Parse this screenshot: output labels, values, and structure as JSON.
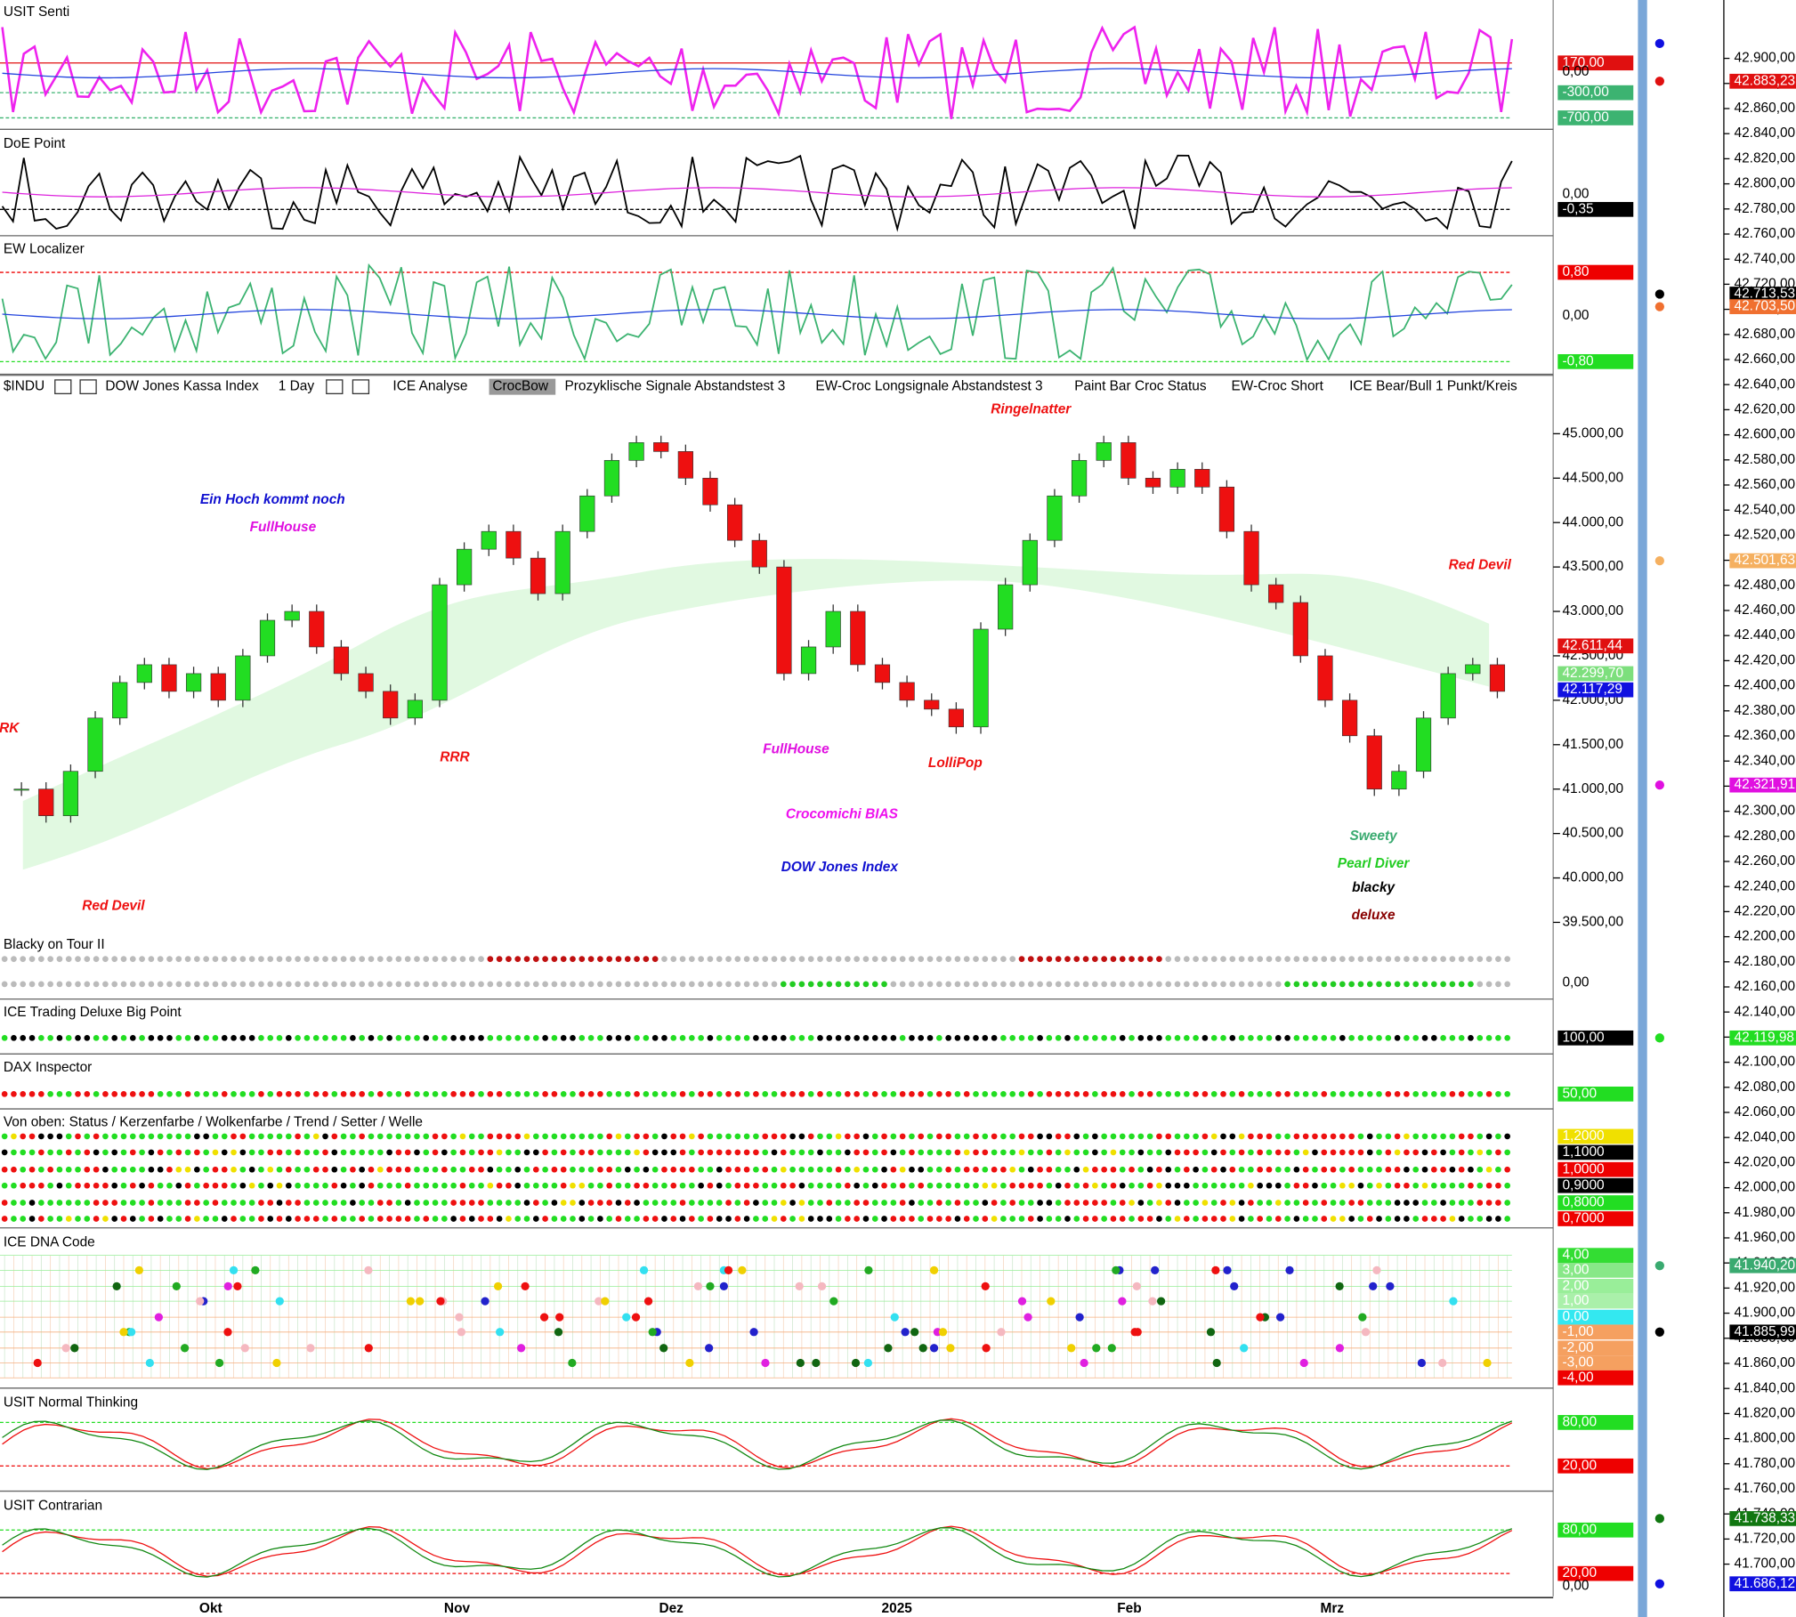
{
  "panels": [
    {
      "title": "USIT Senti",
      "levels": [
        {
          "label": "170,00",
          "color": "#e01010"
        },
        {
          "label": "0,00",
          "color": "none"
        },
        {
          "label": "-300,00",
          "color": "#3cb371"
        },
        {
          "label": "-700,00",
          "color": "#3cb371"
        }
      ]
    },
    {
      "title": "DoE Point",
      "levels": [
        {
          "label": "0,00",
          "color": "none"
        },
        {
          "label": "-0,35",
          "color": "#000000"
        }
      ]
    },
    {
      "title": "EW Localizer",
      "levels": [
        {
          "label": "0,80",
          "color": "#ee0000"
        },
        {
          "label": "0,00",
          "color": "none"
        },
        {
          "label": "-0,80",
          "color": "#22dd22"
        }
      ]
    },
    {
      "title": "Blacky on Tour II",
      "levels": [
        {
          "label": "0,00",
          "color": "none"
        }
      ]
    },
    {
      "title": "ICE Trading Deluxe Big Point",
      "levels": [
        {
          "label": "100,00",
          "color": "#000000"
        }
      ]
    },
    {
      "title": "DAX Inspector",
      "levels": [
        {
          "label": "50,00",
          "color": "#22dd22"
        }
      ]
    },
    {
      "title": "Von oben: Status / Kerzenfarbe / Wolkenfarbe / Trend / Setter / Welle",
      "levels": [
        {
          "label": "1,2000",
          "color": "#f0e000"
        },
        {
          "label": "1,1000",
          "color": "#000000"
        },
        {
          "label": "1,0000",
          "color": "#ee0000"
        },
        {
          "label": "0,9000",
          "color": "#000000"
        },
        {
          "label": "0,8000",
          "color": "#22dd22"
        },
        {
          "label": "0,7000",
          "color": "#ee0000"
        }
      ]
    },
    {
      "title": "ICE DNA Code",
      "levels": [
        {
          "label": "4,00",
          "color": "#33dd33"
        },
        {
          "label": "3,00",
          "color": "#88e888"
        },
        {
          "label": "2,00",
          "color": "#99ee99"
        },
        {
          "label": "1,00",
          "color": "#aaf0aa"
        },
        {
          "label": "0,00",
          "color": "#33e8f0"
        },
        {
          "label": "-1,00",
          "color": "#f5a060"
        },
        {
          "label": "-2,00",
          "color": "#f5a060"
        },
        {
          "label": "-3,00",
          "color": "#f5a060"
        },
        {
          "label": "-4,00",
          "color": "#ee0000"
        }
      ]
    },
    {
      "title": "USIT Normal Thinking",
      "levels": [
        {
          "label": "80,00",
          "color": "#22dd22"
        },
        {
          "label": "20,00",
          "color": "#ee0000"
        }
      ]
    },
    {
      "title": "USIT Contrarian",
      "levels": [
        {
          "label": "80,00",
          "color": "#22dd22"
        },
        {
          "label": "20,00",
          "color": "#ee0000"
        },
        {
          "label": "0,00",
          "color": "none"
        }
      ]
    }
  ],
  "main": {
    "toolbar": [
      "$INDU",
      "DOW Jones Kassa Index",
      "1 Day",
      "ICE Analyse",
      "CrocBow",
      "Prozyklische Signale Abstandstest 3",
      "EW-Croc Longsignale Abstandstest 3",
      "Paint Bar Croc Status",
      "EW-Croc Short",
      "ICE Bear/Bull 1 Punkt/Kreis"
    ],
    "yticks": [
      {
        "value": 45000,
        "label": "45.000,00"
      },
      {
        "value": 44500,
        "label": "44.500,00"
      },
      {
        "value": 44000,
        "label": "44.000,00"
      },
      {
        "value": 43500,
        "label": "43.500,00"
      },
      {
        "value": 43000,
        "label": "43.000,00"
      },
      {
        "value": 42500,
        "label": "42.500,00"
      },
      {
        "value": 42000,
        "label": "42.000,00"
      },
      {
        "value": 41500,
        "label": "41.500,00"
      },
      {
        "value": 41000,
        "label": "41.000,00"
      },
      {
        "value": 40500,
        "label": "40.500,00"
      },
      {
        "value": 40000,
        "label": "40.000,00"
      },
      {
        "value": 39500,
        "label": "39.500,00"
      }
    ],
    "price_labels": [
      {
        "value": 42611.44,
        "label": "42.611,44",
        "color": "#e01010"
      },
      {
        "value": 42299.7,
        "label": "42.299,70",
        "color": "#7ddf7d"
      },
      {
        "value": 42117.29,
        "label": "42.117,29",
        "color": "#1010e0"
      }
    ],
    "closes": [
      41000,
      40700,
      41200,
      41800,
      42200,
      42400,
      42100,
      42300,
      42000,
      42500,
      42900,
      43000,
      42600,
      42300,
      42100,
      41800,
      42000,
      43300,
      43700,
      43900,
      43600,
      43200,
      43900,
      44300,
      44700,
      44900,
      44800,
      44500,
      44200,
      43800,
      43500,
      42300,
      42600,
      43000,
      42400,
      42200,
      42000,
      41900,
      41700,
      42800,
      43300,
      43800,
      44300,
      44700,
      44900,
      44500,
      44400,
      44600,
      44400,
      43900,
      43300,
      43100,
      42500,
      42000,
      41600,
      41000,
      41200,
      41800,
      42300,
      42400,
      42100
    ],
    "annotations": [
      {
        "text": "Ein Hoch kommt noch",
        "color": "#1010d0"
      },
      {
        "text": "FullHouse",
        "color": "#e010e0"
      },
      {
        "text": "RRR",
        "color": "#ee1010"
      },
      {
        "text": "Ringelnatter",
        "color": "#ee1010"
      },
      {
        "text": "Red Devil",
        "color": "#ee1010"
      },
      {
        "text": "Red Devil",
        "color": "#ee1010"
      },
      {
        "text": "FullHouse",
        "color": "#e010e0"
      },
      {
        "text": "LolliPop",
        "color": "#ee1010"
      },
      {
        "text": "Crocomichi BIAS",
        "color": "#ee10ee"
      },
      {
        "text": "DOW Jones Index",
        "color": "#1010d0"
      },
      {
        "text": "Sweety",
        "color": "#3aaa70"
      },
      {
        "text": "Pearl Diver",
        "color": "#22cc22"
      },
      {
        "text": "blacky",
        "color": "#000000"
      },
      {
        "text": "deluxe",
        "color": "#880000"
      },
      {
        "text": "RK",
        "color": "#ee1010"
      }
    ]
  },
  "x_labels": [
    "Okt",
    "Nov",
    "Dez",
    "2025",
    "Feb",
    "Mrz"
  ],
  "right_axis": [
    "42.900,00",
    "42.880,00",
    "42.860,00",
    "42.840,00",
    "42.820,00",
    "42.800,00",
    "42.780,00",
    "42.760,00",
    "42.740,00",
    "42.720,00",
    "42.700,00",
    "42.680,00",
    "42.660,00",
    "42.640,00",
    "42.620,00",
    "42.600,00",
    "42.580,00",
    "42.560,00",
    "42.540,00",
    "42.520,00",
    "42.500,00",
    "42.480,00",
    "42.460,00",
    "42.440,00",
    "42.420,00",
    "42.400,00",
    "42.380,00",
    "42.360,00",
    "42.340,00",
    "42.320,00",
    "42.300,00",
    "42.280,00",
    "42.260,00",
    "42.240,00",
    "42.220,00",
    "42.200,00",
    "42.180,00",
    "42.160,00",
    "42.140,00",
    "42.120,00",
    "42.100,00",
    "42.080,00",
    "42.060,00",
    "42.040,00",
    "42.020,00",
    "42.000,00",
    "41.980,00",
    "41.960,00",
    "41.940,00",
    "41.920,00",
    "41.900,00",
    "41.880,00",
    "41.860,00",
    "41.840,00",
    "41.820,00",
    "41.800,00",
    "41.780,00",
    "41.760,00",
    "41.740,00",
    "41.720,00",
    "41.700,00"
  ],
  "right_markers": [
    {
      "label": "42.883,23",
      "color": "#e01010"
    },
    {
      "label": "42.713,53",
      "color": "#000000"
    },
    {
      "label": "42.703,50",
      "color": "#f07030"
    },
    {
      "label": "42.501,63",
      "color": "#f5b060"
    },
    {
      "label": "42.321,91",
      "color": "#e010e0"
    },
    {
      "label": "42.119,98",
      "color": "#22dd22"
    },
    {
      "label": "41.940,20",
      "color": "#3aaa70"
    },
    {
      "label": "41.885,99",
      "color": "#000000"
    },
    {
      "label": "41.738,33",
      "color": "#117711"
    },
    {
      "label": "41.686,12",
      "color": "#1010e0"
    }
  ]
}
